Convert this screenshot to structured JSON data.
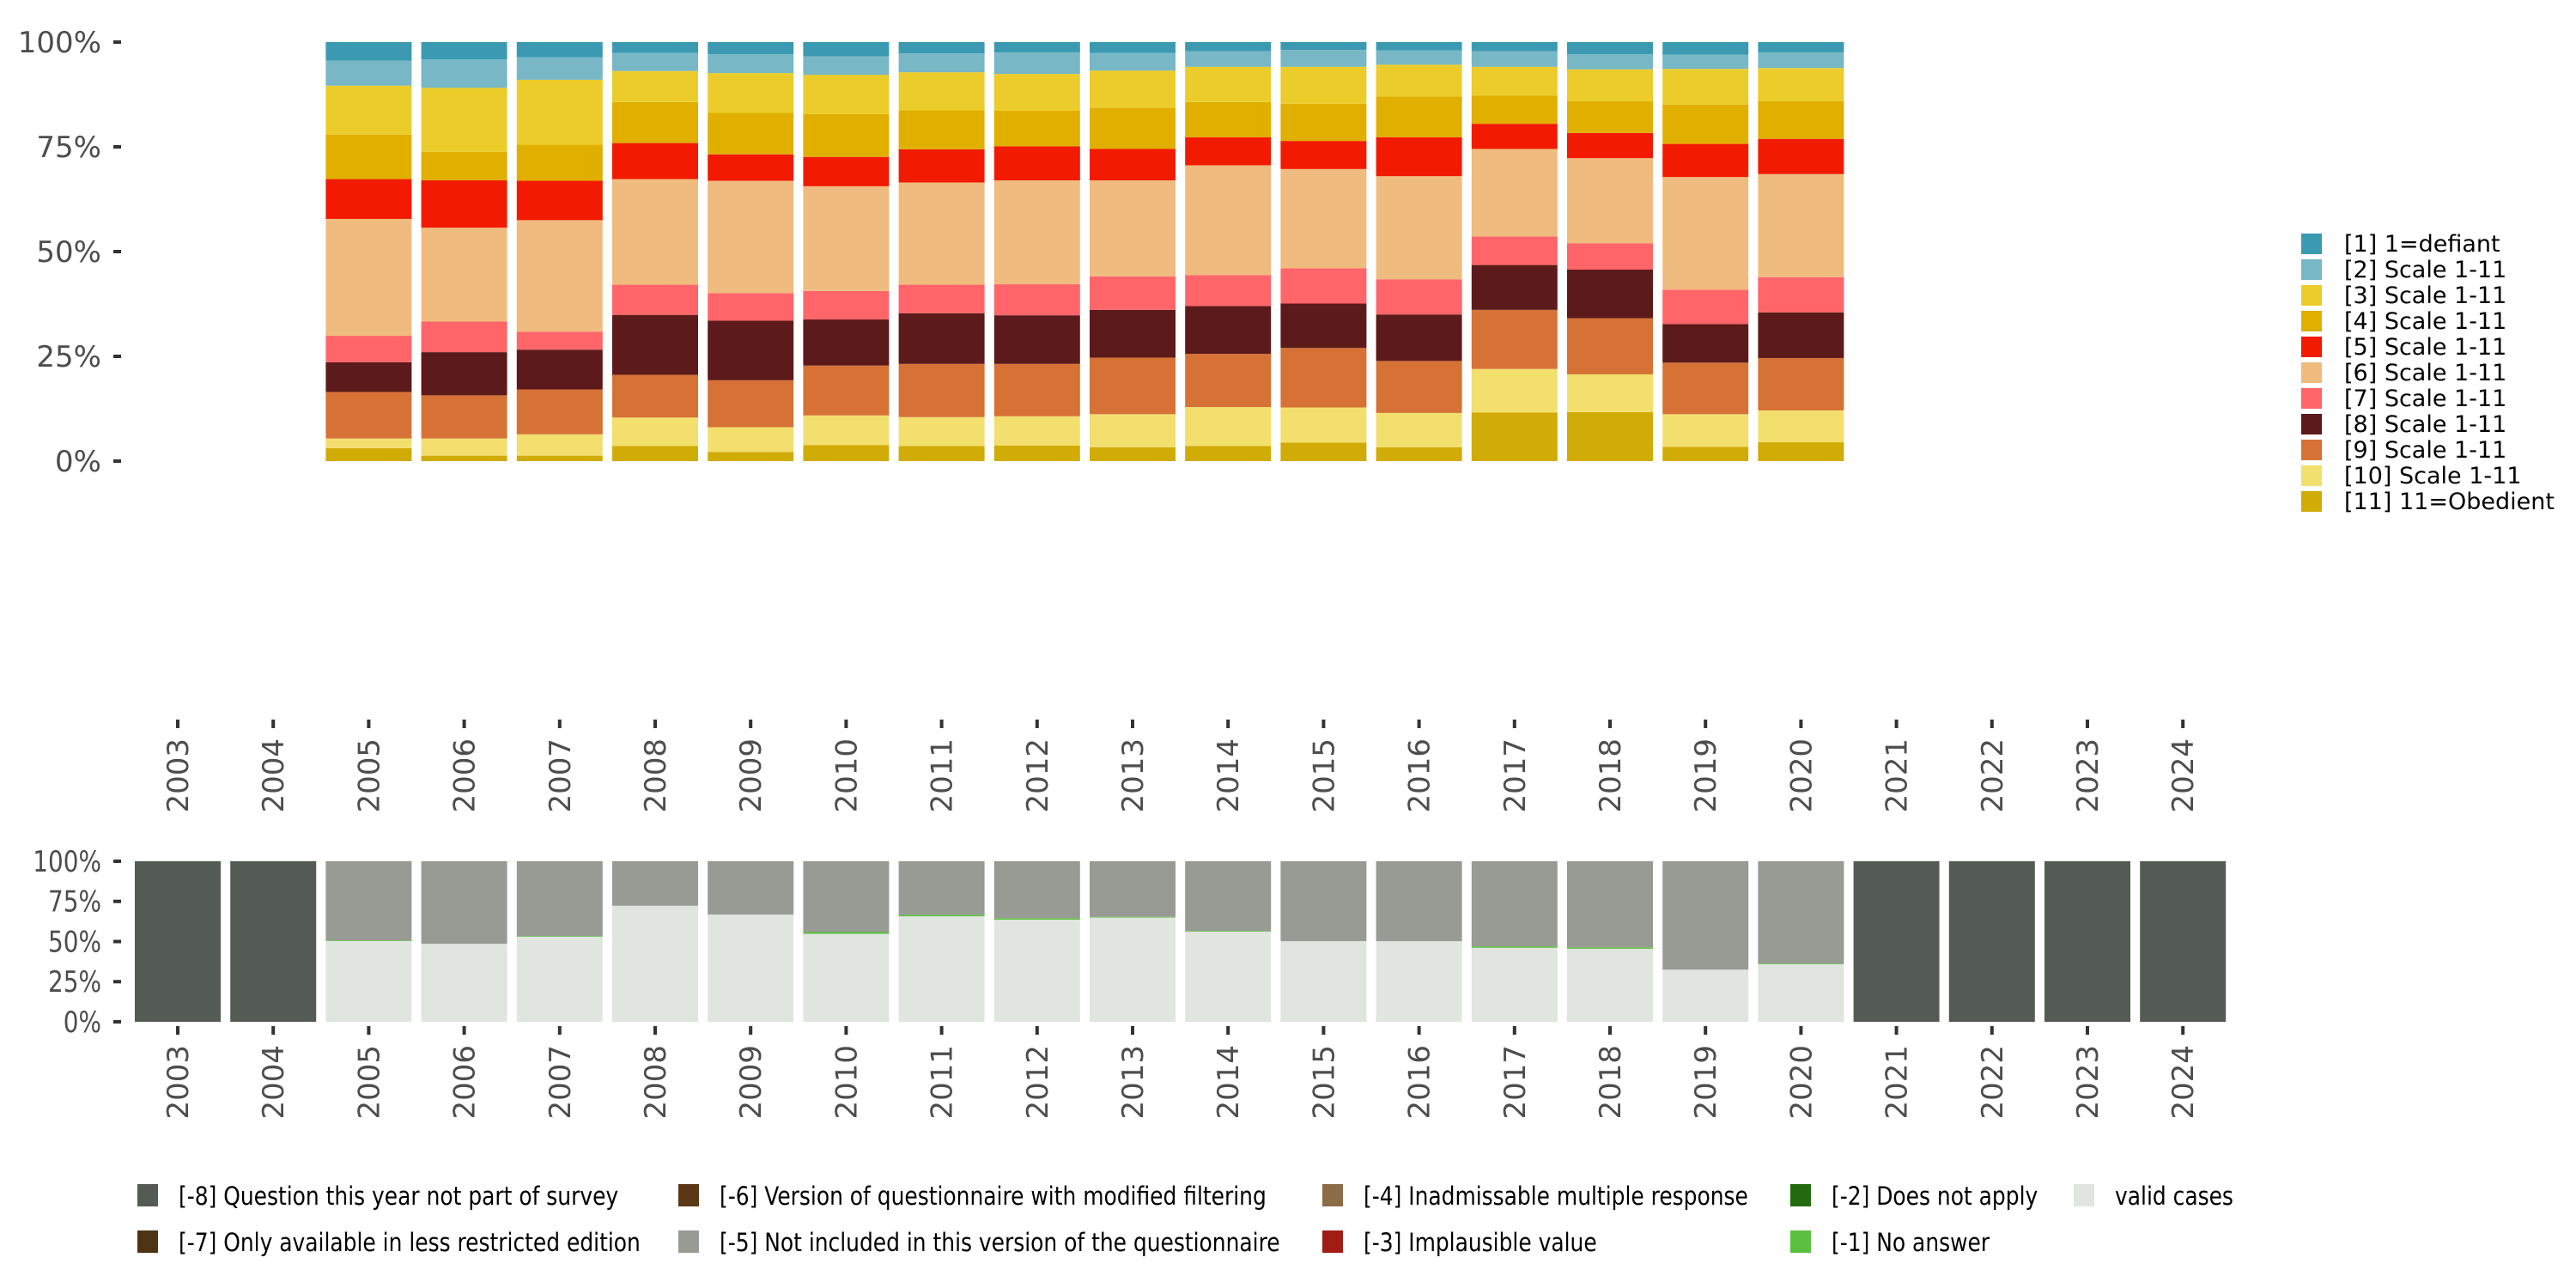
{
  "chart_data": [
    {
      "type": "bar",
      "stacked": true,
      "normalized": true,
      "name": "valid-responses-distribution",
      "title": "",
      "xlabel": "",
      "ylabel": "",
      "ylim": [
        0,
        100
      ],
      "yticks": [
        "0%",
        "25%",
        "50%",
        "75%",
        "100%"
      ],
      "categories": [
        "2003",
        "2004",
        "2005",
        "2006",
        "2007",
        "2008",
        "2009",
        "2010",
        "2011",
        "2012",
        "2013",
        "2014",
        "2015",
        "2016",
        "2017",
        "2018",
        "2019",
        "2020",
        "2021",
        "2022",
        "2023",
        "2024"
      ],
      "legend_position": "right",
      "series": [
        {
          "name": "[1] 1=defiant",
          "color": "#3b9ab2",
          "values": [
            null,
            null,
            4.4,
            4.1,
            3.6,
            2.6,
            2.9,
            3.4,
            2.7,
            2.5,
            2.6,
            2.2,
            1.9,
            2.0,
            2.2,
            2.9,
            3.0,
            2.5,
            null,
            null,
            null,
            null
          ]
        },
        {
          "name": "[2] Scale 1-11",
          "color": "#78b7c5",
          "values": [
            null,
            null,
            6.0,
            6.8,
            5.4,
            4.3,
            4.5,
            4.4,
            4.5,
            5.1,
            4.2,
            3.7,
            4.0,
            3.4,
            3.7,
            3.6,
            3.4,
            3.7,
            null,
            null,
            null,
            null
          ]
        },
        {
          "name": "[3] Scale 1-11",
          "color": "#ebcc2a",
          "values": [
            null,
            null,
            11.7,
            15.3,
            15.5,
            7.4,
            9.5,
            9.4,
            9.1,
            8.8,
            8.9,
            8.4,
            8.8,
            7.6,
            6.9,
            7.6,
            8.5,
            7.9,
            null,
            null,
            null,
            null
          ]
        },
        {
          "name": "[4] Scale 1-11",
          "color": "#e1af00",
          "values": [
            null,
            null,
            10.6,
            6.8,
            8.6,
            9.8,
            9.9,
            10.2,
            9.3,
            8.5,
            9.8,
            8.4,
            8.9,
            9.7,
            6.7,
            7.6,
            9.4,
            9.0,
            null,
            null,
            null,
            null
          ]
        },
        {
          "name": "[5] Scale 1-11",
          "color": "#f21a00",
          "values": [
            null,
            null,
            9.5,
            11.3,
            9.4,
            8.6,
            6.3,
            7.0,
            7.9,
            8.1,
            7.5,
            6.7,
            6.7,
            9.3,
            6.0,
            6.0,
            7.9,
            8.4,
            null,
            null,
            null,
            null
          ]
        },
        {
          "name": "[6] Scale 1-11",
          "color": "#f0bb7f",
          "values": [
            null,
            null,
            27.9,
            22.4,
            26.6,
            25.2,
            26.8,
            25.0,
            24.4,
            24.8,
            22.9,
            26.2,
            23.7,
            24.6,
            20.9,
            20.3,
            26.9,
            24.6,
            null,
            null,
            null,
            null
          ]
        },
        {
          "name": "[7] Scale 1-11",
          "color": "#ff6569",
          "values": [
            null,
            null,
            6.3,
            7.3,
            4.3,
            7.2,
            6.6,
            6.8,
            6.8,
            7.4,
            8.0,
            7.4,
            8.4,
            8.4,
            6.8,
            6.3,
            8.2,
            8.4,
            null,
            null,
            null,
            null
          ]
        },
        {
          "name": "[8] Scale 1-11",
          "color": "#5c1a1a",
          "values": [
            null,
            null,
            7.1,
            10.3,
            9.5,
            14.3,
            14.2,
            11.0,
            12.1,
            11.6,
            11.4,
            11.4,
            10.6,
            11.1,
            10.7,
            11.6,
            9.2,
            10.9,
            null,
            null,
            null,
            null
          ]
        },
        {
          "name": "[9] Scale 1-11",
          "color": "#d67236",
          "values": [
            null,
            null,
            11.1,
            10.3,
            10.7,
            10.2,
            11.2,
            11.9,
            12.7,
            12.5,
            13.5,
            12.7,
            14.2,
            12.4,
            14.1,
            13.4,
            12.3,
            12.5,
            null,
            null,
            null,
            null
          ]
        },
        {
          "name": "[10] Scale 1-11",
          "color": "#f2df6e",
          "values": [
            null,
            null,
            2.3,
            4.1,
            5.1,
            6.8,
            5.9,
            7.1,
            6.9,
            7.0,
            7.9,
            9.3,
            8.4,
            8.2,
            10.4,
            9.0,
            7.8,
            7.6,
            null,
            null,
            null,
            null
          ]
        },
        {
          "name": "[11] 11=Obedient",
          "color": "#d1ab06",
          "values": [
            null,
            null,
            3.1,
            1.3,
            1.3,
            3.6,
            2.2,
            3.8,
            3.6,
            3.7,
            3.3,
            3.6,
            4.4,
            3.3,
            11.6,
            11.7,
            3.4,
            4.5,
            null,
            null,
            null,
            null
          ]
        }
      ]
    },
    {
      "type": "bar",
      "stacked": true,
      "normalized": true,
      "name": "missing-values-distribution",
      "title": "",
      "xlabel": "",
      "ylabel": "",
      "ylim": [
        0,
        100
      ],
      "yticks": [
        "0%",
        "25%",
        "50%",
        "75%",
        "100%"
      ],
      "categories": [
        "2003",
        "2004",
        "2005",
        "2006",
        "2007",
        "2008",
        "2009",
        "2010",
        "2011",
        "2012",
        "2013",
        "2014",
        "2015",
        "2016",
        "2017",
        "2018",
        "2019",
        "2020",
        "2021",
        "2022",
        "2023",
        "2024"
      ],
      "legend_position": "bottom",
      "series": [
        {
          "name": "[-8] Question this year not part of survey",
          "color": "#545b54",
          "values": [
            100,
            100,
            0,
            0,
            0,
            0,
            0,
            0,
            0,
            0,
            0,
            0,
            0,
            0,
            0,
            0,
            0,
            0,
            100,
            100,
            100,
            100
          ]
        },
        {
          "name": "[-7] Only available in less restricted edition",
          "color": "#4e3315",
          "values": [
            0,
            0,
            0,
            0,
            0,
            0,
            0,
            0,
            0,
            0,
            0,
            0,
            0,
            0,
            0,
            0,
            0,
            0,
            0,
            0,
            0,
            0
          ]
        },
        {
          "name": "[-6] Version of questionnaire with modified filtering",
          "color": "#5a3816",
          "values": [
            0,
            0,
            0,
            0,
            0,
            0,
            0,
            0,
            0,
            0,
            0,
            0,
            0,
            0,
            0,
            0,
            0,
            0,
            0,
            0,
            0,
            0
          ]
        },
        {
          "name": "[-5] Not included in this version of the questionnaire",
          "color": "#979b94",
          "values": [
            0,
            0,
            49.3,
            51.4,
            46.6,
            27.7,
            33.2,
            44.1,
            33.3,
            35.4,
            34.6,
            43.4,
            49.8,
            49.8,
            53.0,
            53.6,
            67.5,
            63.7,
            0,
            0,
            0,
            0
          ]
        },
        {
          "name": "[-4] Inadmissable multiple response",
          "color": "#8c6b47",
          "values": [
            0,
            0,
            0,
            0,
            0,
            0,
            0,
            0,
            0,
            0,
            0,
            0,
            0,
            0,
            0,
            0,
            0,
            0,
            0,
            0,
            0,
            0
          ]
        },
        {
          "name": "[-3] Implausible value",
          "color": "#a31b15",
          "values": [
            0,
            0,
            0,
            0,
            0,
            0,
            0,
            0,
            0,
            0,
            0,
            0,
            0,
            0,
            0,
            0,
            0,
            0,
            0,
            0,
            0,
            0
          ]
        },
        {
          "name": "[-2] Does not apply",
          "color": "#246b10",
          "values": [
            0,
            0,
            0,
            0,
            0,
            0,
            0,
            0,
            0,
            0,
            0,
            0,
            0,
            0,
            0,
            0,
            0,
            0,
            0,
            0,
            0,
            0
          ]
        },
        {
          "name": "[-1] No answer",
          "color": "#5cbf3f",
          "values": [
            0,
            0,
            0.2,
            0,
            0.2,
            0,
            0,
            1.1,
            1.0,
            1.0,
            0.4,
            0.3,
            0,
            0,
            0.9,
            0.9,
            0,
            0.4,
            0,
            0,
            0,
            0
          ]
        },
        {
          "name": "valid cases",
          "color": "#e0e5e0",
          "values": [
            0,
            0,
            50.5,
            48.6,
            53.2,
            72.3,
            66.8,
            54.8,
            65.7,
            63.6,
            65.0,
            56.3,
            50.2,
            50.2,
            46.1,
            45.5,
            32.5,
            35.9,
            0,
            0,
            0,
            0
          ]
        }
      ]
    }
  ]
}
